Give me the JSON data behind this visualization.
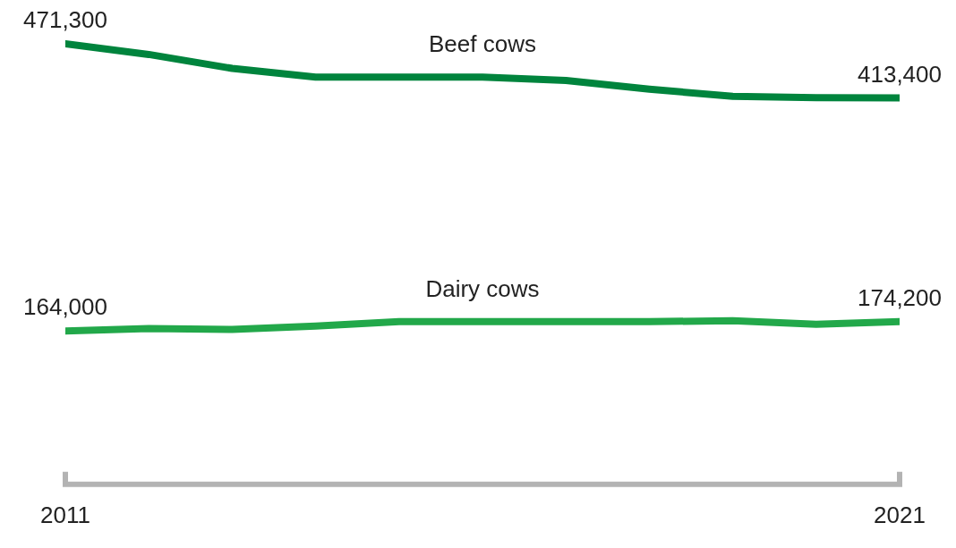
{
  "chart_data": {
    "type": "line",
    "x": [
      2011,
      2012,
      2013,
      2014,
      2015,
      2016,
      2017,
      2018,
      2019,
      2020,
      2021
    ],
    "xlim": [
      2011,
      2021
    ],
    "xticks": [
      2011,
      2021
    ],
    "grid": false,
    "legend": false,
    "marker": "none",
    "line_style": "solid",
    "series": [
      {
        "name": "Beef cows",
        "color": "#00843d",
        "values": [
          471300,
          459900,
          445000,
          435700,
          435700,
          435700,
          432000,
          422700,
          415200,
          413800,
          413400
        ],
        "value_labels": [
          "471,300",
          null,
          null,
          null,
          null,
          null,
          null,
          null,
          null,
          null,
          "413,400"
        ]
      },
      {
        "name": "Dairy cows",
        "color": "#22a84a",
        "values": [
          164000,
          166700,
          165700,
          169400,
          174100,
          174100,
          174100,
          174100,
          175000,
          171300,
          174200
        ],
        "value_labels": [
          "164,000",
          null,
          null,
          null,
          null,
          null,
          null,
          null,
          null,
          null,
          "174,200"
        ]
      }
    ]
  }
}
